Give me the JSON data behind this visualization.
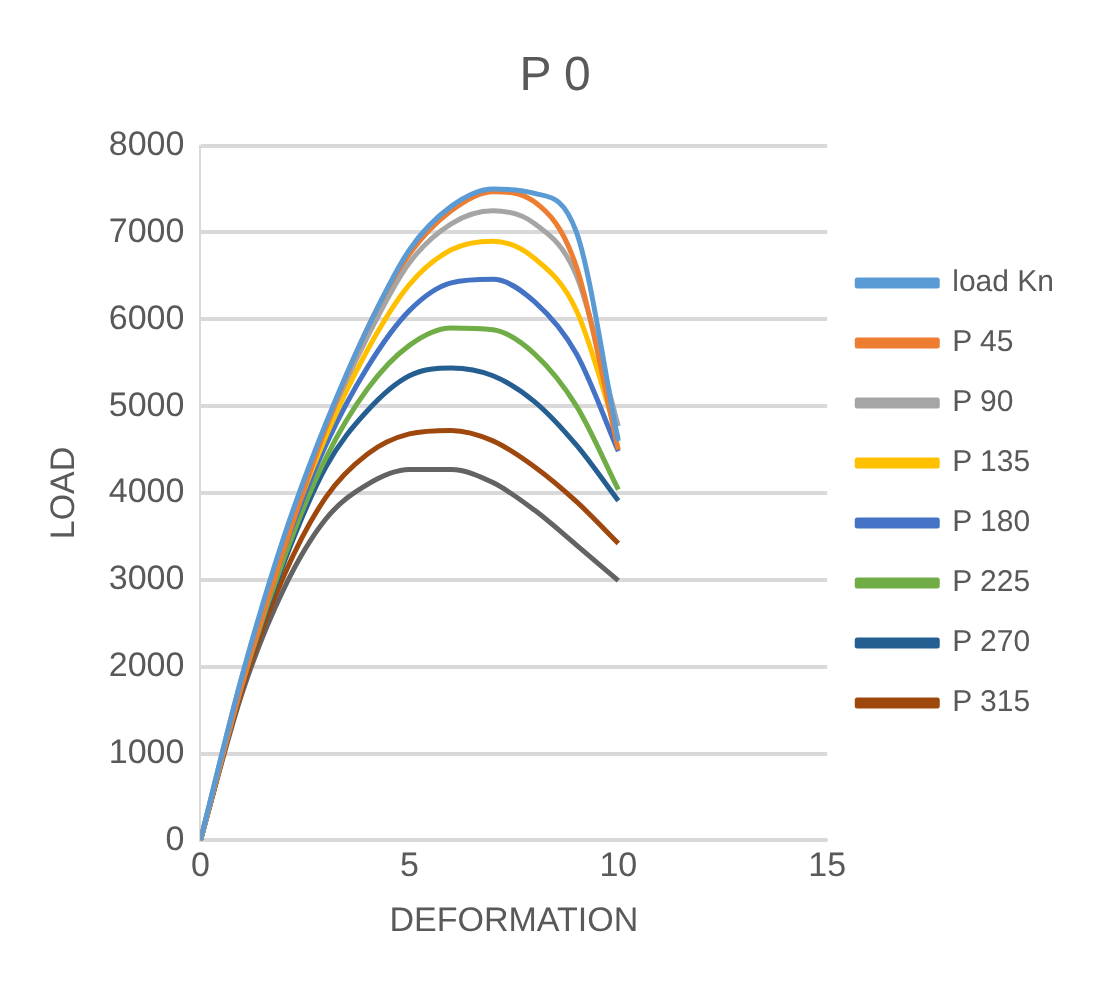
{
  "chart_data": {
    "type": "line",
    "title": "P 0",
    "xlabel": "DEFORMATION",
    "ylabel": "LOAD",
    "x": [
      0,
      1,
      2,
      3,
      4,
      5,
      6,
      7,
      8,
      9,
      10
    ],
    "xlim": [
      0,
      15
    ],
    "xticks": [
      0,
      5,
      10,
      15
    ],
    "ylim": [
      0,
      8000
    ],
    "yticks": [
      0,
      1000,
      2000,
      3000,
      4000,
      5000,
      6000,
      7000,
      8000
    ],
    "grid": "y",
    "legend": "right",
    "marker": "none",
    "line_style": "solid",
    "series": [
      {
        "name": "load Kn",
        "color": "#5b9bd5",
        "values": [
          0,
          1900,
          3500,
          4800,
          5900,
          6800,
          7300,
          7500,
          7450,
          7000,
          4600
        ]
      },
      {
        "name": "P 45",
        "color": "#ed7d31",
        "values": [
          0,
          1800,
          3350,
          4750,
          5900,
          6750,
          7250,
          7470,
          7350,
          6600,
          4500
        ]
      },
      {
        "name": "P 90",
        "color": "#a5a5a5",
        "values": [
          0,
          1900,
          3450,
          4750,
          5800,
          6650,
          7100,
          7250,
          7100,
          6500,
          4770
        ]
      },
      {
        "name": "P 135",
        "color": "#ffc000",
        "values": [
          0,
          1850,
          3400,
          4650,
          5650,
          6400,
          6800,
          6900,
          6700,
          6100,
          4630
        ]
      },
      {
        "name": "P 180",
        "color": "#4472c4",
        "values": [
          0,
          1850,
          3350,
          4550,
          5450,
          6100,
          6420,
          6460,
          6200,
          5600,
          4480
        ]
      },
      {
        "name": "P 225",
        "color": "#70ad47",
        "values": [
          0,
          1800,
          3250,
          4400,
          5200,
          5700,
          5900,
          5880,
          5600,
          5000,
          4040
        ]
      },
      {
        "name": "P 270",
        "color": "#255e91",
        "values": [
          0,
          1800,
          3200,
          4300,
          4950,
          5350,
          5440,
          5350,
          5050,
          4550,
          3910
        ]
      },
      {
        "name": "P 315",
        "color": "#9e480e",
        "values": [
          0,
          1750,
          3050,
          3950,
          4450,
          4680,
          4720,
          4600,
          4300,
          3900,
          3420
        ]
      },
      {
        "color": "#636363",
        "values": [
          0,
          1700,
          2900,
          3700,
          4100,
          4270,
          4270,
          4120,
          3800,
          3400,
          2990
        ]
      }
    ]
  }
}
